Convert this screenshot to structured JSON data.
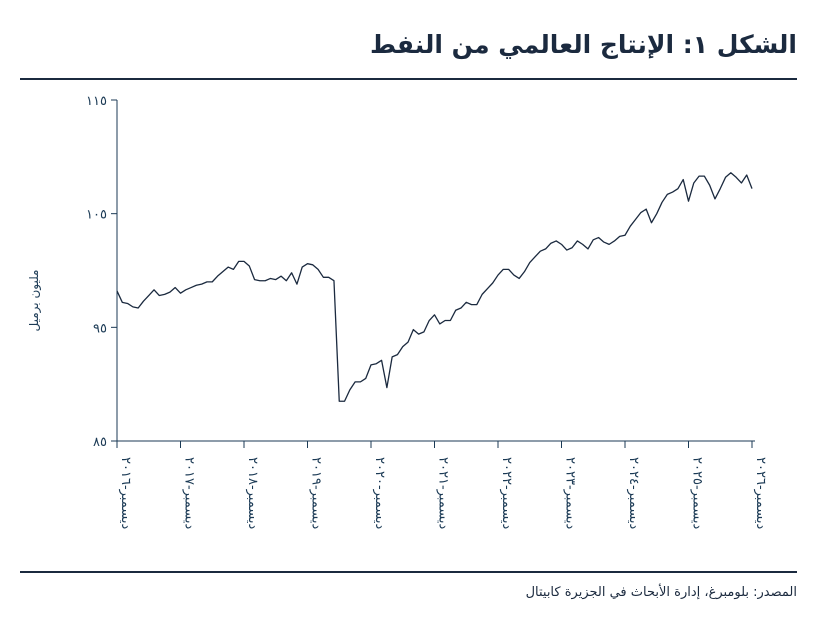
{
  "title": "الشكل ١: الإنتاج العالمي من النفط",
  "source": "المصدر: بلومبرغ، إدارة الأبحاث في الجزيرة كابيتال",
  "colors": {
    "text": "#1b2a3f",
    "line": "#1b2a3f",
    "axis": "#1b3a55"
  },
  "chart_data": {
    "type": "line",
    "title": "",
    "xlabel": "",
    "ylabel": "مليون برميل",
    "ylim": [
      85,
      115
    ],
    "yticks": [
      85,
      95,
      105,
      115
    ],
    "ytick_labels": [
      "٨٥",
      "٩٥",
      "١٠٥",
      "١١٥"
    ],
    "grid": false,
    "xticks": [
      "2016-12",
      "2017-12",
      "2018-12",
      "2019-12",
      "2020-12",
      "2021-12",
      "2022-12",
      "2023-12",
      "2024-12",
      "2025-12",
      "2026-12"
    ],
    "xtick_labels": [
      "ديسمبر-٢٠١٦",
      "ديسمبر-٢٠١٧",
      "ديسمبر-٢٠١٨",
      "ديسمبر-٢٠١٩",
      "ديسمبر-٢٠٢٠",
      "ديسمبر-٢٠٢١",
      "ديسمبر-٢٠٢٢",
      "ديسمبر-٢٠٢٣",
      "ديسمبر-٢٠٢٤",
      "ديسمبر-٢٠٢٥",
      "ديسمبر-٢٠٢٦"
    ],
    "x": [
      "2016-12",
      "2017-01",
      "2017-02",
      "2017-03",
      "2017-04",
      "2017-05",
      "2017-06",
      "2017-07",
      "2017-08",
      "2017-09",
      "2017-10",
      "2017-11",
      "2017-12",
      "2018-01",
      "2018-02",
      "2018-03",
      "2018-04",
      "2018-05",
      "2018-06",
      "2018-07",
      "2018-08",
      "2018-09",
      "2018-10",
      "2018-11",
      "2018-12",
      "2019-01",
      "2019-02",
      "2019-03",
      "2019-04",
      "2019-05",
      "2019-06",
      "2019-07",
      "2019-08",
      "2019-09",
      "2019-10",
      "2019-11",
      "2019-12",
      "2020-01",
      "2020-02",
      "2020-03",
      "2020-04",
      "2020-05",
      "2020-06",
      "2020-07",
      "2020-08",
      "2020-09",
      "2020-10",
      "2020-11",
      "2020-12",
      "2021-01",
      "2021-02",
      "2021-03",
      "2021-04",
      "2021-05",
      "2021-06",
      "2021-07",
      "2021-08",
      "2021-09",
      "2021-10",
      "2021-11",
      "2021-12",
      "2022-01",
      "2022-02",
      "2022-03",
      "2022-04",
      "2022-05",
      "2022-06",
      "2022-07",
      "2022-08",
      "2022-09",
      "2022-10",
      "2022-11",
      "2022-12",
      "2023-01",
      "2023-02",
      "2023-03",
      "2023-04",
      "2023-05",
      "2023-06",
      "2023-07",
      "2023-08",
      "2023-09",
      "2023-10",
      "2023-11",
      "2023-12",
      "2024-01",
      "2024-02",
      "2024-03",
      "2024-04",
      "2024-05",
      "2024-06",
      "2024-07",
      "2024-08",
      "2024-09",
      "2024-10",
      "2024-11",
      "2024-12",
      "2025-01",
      "2025-02",
      "2025-03",
      "2025-04",
      "2025-05",
      "2025-06",
      "2025-07",
      "2025-08",
      "2025-09",
      "2025-10",
      "2025-11",
      "2025-12",
      "2026-01",
      "2026-02",
      "2026-03",
      "2026-04",
      "2026-05",
      "2026-06",
      "2026-07",
      "2026-08",
      "2026-09",
      "2026-10",
      "2026-11",
      "2026-12"
    ],
    "series": [
      {
        "values": [
          98.2,
          97.2,
          97.1,
          96.8,
          96.7,
          97.3,
          97.8,
          98.3,
          97.8,
          97.9,
          98.1,
          98.5,
          98.0,
          98.3,
          98.5,
          98.7,
          98.8,
          99.0,
          99.0,
          99.5,
          99.9,
          100.3,
          100.1,
          100.8,
          100.8,
          100.4,
          99.2,
          99.1,
          99.1,
          99.3,
          99.2,
          99.5,
          99.1,
          99.8,
          98.8,
          100.3,
          100.6,
          100.5,
          100.1,
          99.4,
          99.4,
          99.1,
          88.5,
          88.5,
          89.5,
          90.2,
          90.2,
          90.5,
          91.7,
          91.8,
          92.1,
          89.7,
          92.4,
          92.6,
          93.3,
          93.7,
          94.8,
          94.4,
          94.6,
          95.6,
          96.1,
          95.3,
          95.6,
          95.6,
          96.5,
          96.7,
          97.2,
          97.0,
          97.0,
          97.9,
          98.4,
          98.9,
          99.6,
          100.1,
          100.1,
          99.6,
          99.3,
          99.9,
          100.7,
          101.2,
          101.7,
          101.9,
          102.4,
          102.6,
          102.3,
          101.8,
          102.0,
          102.6,
          102.3,
          101.9,
          102.7,
          102.9,
          102.5,
          102.3,
          102.6,
          103.0,
          103.1,
          103.9,
          104.5,
          105.1,
          105.4,
          104.2,
          105.0,
          106.0,
          106.7,
          106.9,
          107.2,
          108.0,
          106.1,
          107.7,
          108.3,
          108.3,
          107.5,
          106.3,
          107.2,
          108.2,
          108.6,
          108.2,
          107.7,
          108.4,
          107.2
        ]
      }
    ]
  }
}
